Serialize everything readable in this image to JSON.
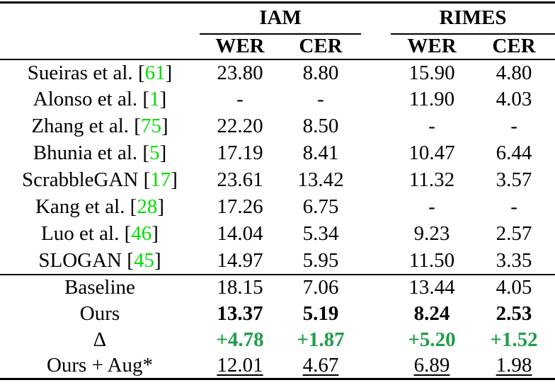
{
  "table": {
    "header": {
      "groups": [
        {
          "label": "IAM"
        },
        {
          "label": "RIMES"
        }
      ],
      "metrics": {
        "wer": "WER",
        "cer": "CER"
      }
    },
    "glyphs": {
      "lbracket": "[",
      "rbracket": "]"
    },
    "colors": {
      "background": "#ffffff",
      "text": "#000000",
      "citation_green": "#00dd00",
      "delta_green": "#1f9d4a"
    },
    "rows": [
      {
        "label": "Sueiras et al.",
        "cite": "61",
        "style": "normal",
        "section": "comparison",
        "values": [
          "23.80",
          "8.80",
          "15.90",
          "4.80"
        ]
      },
      {
        "label": "Alonso et al.",
        "cite": "1",
        "style": "normal",
        "section": "comparison",
        "values": [
          "-",
          "-",
          "11.90",
          "4.03"
        ]
      },
      {
        "label": "Zhang et al.",
        "cite": "75",
        "style": "normal",
        "section": "comparison",
        "values": [
          "22.20",
          "8.50",
          "-",
          "-"
        ]
      },
      {
        "label": "Bhunia et al.",
        "cite": "5",
        "style": "normal",
        "section": "comparison",
        "values": [
          "17.19",
          "8.41",
          "10.47",
          "6.44"
        ]
      },
      {
        "label": "ScrabbleGAN",
        "cite": "17",
        "style": "normal",
        "section": "comparison",
        "values": [
          "23.61",
          "13.42",
          "11.32",
          "3.57"
        ]
      },
      {
        "label": "Kang et al.",
        "cite": "28",
        "style": "normal",
        "section": "comparison",
        "values": [
          "17.26",
          "6.75",
          "-",
          "-"
        ]
      },
      {
        "label": "Luo et al.",
        "cite": "46",
        "style": "normal",
        "section": "comparison",
        "values": [
          "14.04",
          "5.34",
          "9.23",
          "2.57"
        ]
      },
      {
        "label": "SLOGAN",
        "cite": "45",
        "style": "normal",
        "section": "comparison",
        "values": [
          "14.97",
          "5.95",
          "11.50",
          "3.35"
        ]
      },
      {
        "label": "Baseline",
        "style": "normal",
        "section": "ours",
        "values": [
          "18.15",
          "7.06",
          "13.44",
          "4.05"
        ]
      },
      {
        "label": "Ours",
        "style": "bold",
        "section": "ours",
        "values": [
          "13.37",
          "5.19",
          "8.24",
          "2.53"
        ]
      },
      {
        "label": "∆",
        "style": "delta",
        "section": "ours",
        "values": [
          "+4.78",
          "+1.87",
          "+5.20",
          "+1.52"
        ]
      },
      {
        "label": "Ours + Aug*",
        "style": "underline",
        "section": "ours",
        "values": [
          "12.01",
          "4.67",
          "6.89",
          "1.98"
        ]
      }
    ]
  }
}
